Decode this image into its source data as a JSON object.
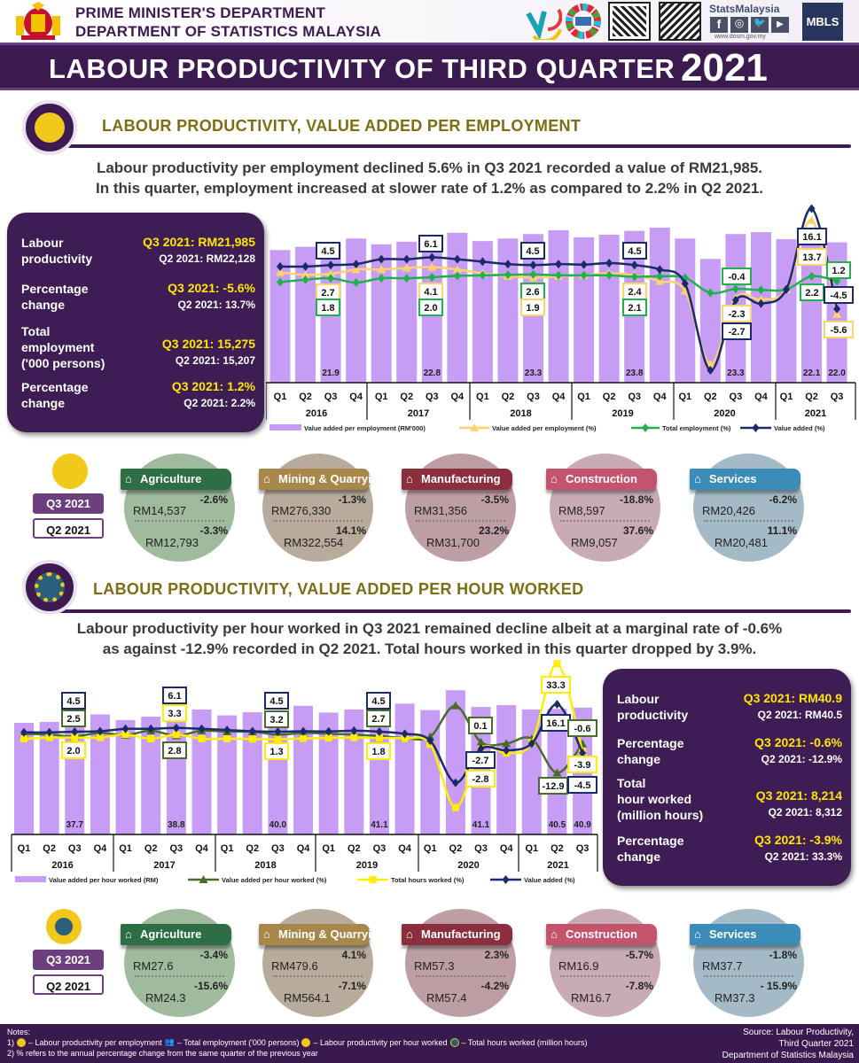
{
  "header": {
    "org_line1": "PRIME MINISTER'S DEPARTMENT",
    "org_line2": "DEPARTMENT OF STATISTICS MALAYSIA",
    "stats_brand": "StatsMalaysia",
    "website": "www.dosm.gov.my",
    "mbls": "MBLS",
    "title": "LABOUR PRODUCTIVITY OF THIRD QUARTER",
    "title_year": "2021",
    "icons": [
      "crest-icon",
      "jata-logo",
      "sdg-wheel-logo",
      "qr-code",
      "qr-code-facebook",
      "facebook-icon",
      "instagram-icon",
      "twitter-icon",
      "youtube-icon"
    ]
  },
  "section1": {
    "heading": "LABOUR PRODUCTIVITY, VALUE ADDED PER EMPLOYMENT",
    "summary_line1": "Labour productivity per employment declined 5.6% in Q3 2021 recorded a value of RM21,985.",
    "summary_line2": "In this quarter, employment increased at slower rate of 1.2% as compared to 2.2% in Q2 2021.",
    "info": [
      {
        "label": "Labour\nproductivity",
        "q3": "Q3 2021: RM21,985",
        "q2": "Q2 2021: RM22,128"
      },
      {
        "label": "Percentage\nchange",
        "q3": "Q3 2021: -5.6%",
        "q2": "Q2 2021: 13.7%"
      },
      {
        "label": "Total\nemployment\n('000 persons)",
        "q3": "Q3 2021: 15,275",
        "q2": "Q2 2021: 15,207"
      },
      {
        "label": "Percentage\nchange",
        "q3": "Q3 2021: 1.2%",
        "q2": "Q2 2021: 2.2%"
      }
    ],
    "q3_label": "Q3 2021",
    "q2_label": "Q2 2021",
    "sectors": [
      {
        "name": "Agriculture",
        "icon": "palm-tree-icon",
        "color": "#2e6e45",
        "bg": "#8fae8c",
        "q3_value": "RM14,537",
        "q3_change": "-2.6%",
        "q2_value": "RM12,793",
        "q2_change": "-3.3%"
      },
      {
        "name": "Mining & Quarrying",
        "icon": "mining-icon",
        "color": "#a8874a",
        "bg": "#ab9c8a",
        "q3_value": "RM276,330",
        "q3_change": "-1.3%",
        "q2_value": "RM322,554",
        "q2_change": "14.1%"
      },
      {
        "name": "Manufacturing",
        "icon": "factory-icon",
        "color": "#8b2e3e",
        "bg": "#b28d94",
        "q3_value": "RM31,356",
        "q3_change": "-3.5%",
        "q2_value": "RM31,700",
        "q2_change": "23.2%"
      },
      {
        "name": "Construction",
        "icon": "crane-icon",
        "color": "#c4536e",
        "bg": "#bf9ca7",
        "q3_value": "RM8,597",
        "q3_change": "-18.8%",
        "q2_value": "RM9,057",
        "q2_change": "37.6%"
      },
      {
        "name": "Services",
        "icon": "services-icon",
        "color": "#3b8cb8",
        "bg": "#94afbd",
        "q3_value": "RM20,426",
        "q3_change": "-6.2%",
        "q2_value": "RM20,481",
        "q2_change": "11.1%"
      }
    ]
  },
  "section2": {
    "heading": "LABOUR PRODUCTIVITY, VALUE ADDED PER HOUR WORKED",
    "summary_line1": "Labour productivity per hour worked in Q3 2021 remained decline albeit at a marginal rate of -0.6%",
    "summary_line2": "as against -12.9% recorded in Q2 2021. Total hours worked in this quarter dropped by 3.9%.",
    "info": [
      {
        "label": "Labour\nproductivity",
        "q3": "Q3 2021: RM40.9",
        "q2": "Q2 2021: RM40.5"
      },
      {
        "label": "Percentage\nchange",
        "q3": "Q3 2021: -0.6%",
        "q2": "Q2 2021: -12.9%"
      },
      {
        "label": "Total\nhour worked\n(million hours)",
        "q3": "Q3 2021: 8,214",
        "q2": "Q2 2021: 8,312"
      },
      {
        "label": "Percentage\nchange",
        "q3": "Q3 2021: -3.9%",
        "q2": "Q2 2021: 33.3%"
      }
    ],
    "q3_label": "Q3 2021",
    "q2_label": "Q2 2021",
    "sectors": [
      {
        "name": "Agriculture",
        "icon": "palm-tree-icon",
        "color": "#2e6e45",
        "bg": "#8fae8c",
        "q3_value": "RM27.6",
        "q3_change": "-3.4%",
        "q2_value": "RM24.3",
        "q2_change": "-15.6%"
      },
      {
        "name": "Mining & Quarrying",
        "icon": "mining-icon",
        "color": "#a8874a",
        "bg": "#ab9c8a",
        "q3_value": "RM479.6",
        "q3_change": "4.1%",
        "q2_value": "RM564.1",
        "q2_change": "-7.1%"
      },
      {
        "name": "Manufacturing",
        "icon": "factory-icon",
        "color": "#8b2e3e",
        "bg": "#b28d94",
        "q3_value": "RM57.3",
        "q3_change": "2.3%",
        "q2_value": "RM57.4",
        "q2_change": "-4.2%"
      },
      {
        "name": "Construction",
        "icon": "crane-icon",
        "color": "#c4536e",
        "bg": "#bf9ca7",
        "q3_value": "RM16.9",
        "q3_change": "-5.7%",
        "q2_value": "RM16.7",
        "q2_change": "-7.8%"
      },
      {
        "name": "Services",
        "icon": "services-icon",
        "color": "#3b8cb8",
        "bg": "#94afbd",
        "q3_value": "RM37.7",
        "q3_change": "-1.8%",
        "q2_value": "RM37.3",
        "q2_change": "- 15.9%"
      }
    ]
  },
  "chart_data": [
    {
      "type": "bar+line",
      "quarters": [
        "Q1",
        "Q2",
        "Q3",
        "Q4",
        "Q1",
        "Q2",
        "Q3",
        "Q4",
        "Q1",
        "Q2",
        "Q3",
        "Q4",
        "Q1",
        "Q2",
        "Q3",
        "Q4",
        "Q1",
        "Q2",
        "Q3",
        "Q4",
        "Q1",
        "Q2",
        "Q3"
      ],
      "years": [
        "2016",
        "2017",
        "2018",
        "2019",
        "2020",
        "2021"
      ],
      "bar_series": {
        "name": "Value added per employment (RM'000)",
        "color": "#c79cf4",
        "values": [
          20.8,
          21.3,
          21.9,
          22.6,
          21.7,
          22.1,
          22.8,
          23.5,
          22.2,
          22.6,
          23.3,
          23.9,
          22.8,
          23.2,
          23.8,
          24.3,
          22.6,
          19.4,
          23.3,
          23.6,
          22.5,
          22.1,
          22.0
        ]
      },
      "bar_labels": [
        {
          "index": 2,
          "text": "21.9"
        },
        {
          "index": 6,
          "text": "22.8"
        },
        {
          "index": 10,
          "text": "23.3"
        },
        {
          "index": 14,
          "text": "23.8"
        },
        {
          "index": 18,
          "text": "23.3"
        },
        {
          "index": 21,
          "text": "22.1"
        },
        {
          "index": 22,
          "text": "22.0"
        }
      ],
      "series": [
        {
          "name": "Value added per employment (%)",
          "color": "#ffd36b",
          "marker": "triangle",
          "values": [
            3.0,
            2.5,
            2.7,
            3.6,
            3.6,
            3.9,
            4.1,
            3.6,
            2.8,
            2.2,
            1.9,
            2.2,
            2.4,
            2.8,
            2.4,
            1.2,
            -0.8,
            -15.9,
            -2.3,
            -2.6,
            -0.5,
            13.7,
            -5.6
          ]
        },
        {
          "name": "Total employment (%)",
          "color": "#20b050",
          "marker": "diamond",
          "values": [
            1.0,
            1.5,
            1.8,
            0.9,
            1.8,
            1.8,
            2.0,
            2.3,
            2.4,
            2.5,
            2.6,
            2.4,
            2.4,
            2.4,
            2.1,
            2.2,
            1.9,
            -1.2,
            -0.4,
            -0.6,
            -0.5,
            2.2,
            1.2
          ]
        },
        {
          "name": "Value added  (%)",
          "color": "#1b2a6b",
          "marker": "diamond",
          "values": [
            4.2,
            4.2,
            4.5,
            4.7,
            5.7,
            5.7,
            6.1,
            5.7,
            5.2,
            4.7,
            4.5,
            4.7,
            4.6,
            4.9,
            4.5,
            3.6,
            0.7,
            -17.1,
            -2.7,
            -3.4,
            -0.5,
            16.1,
            -4.5
          ]
        }
      ],
      "data_labels": [
        {
          "series": 2,
          "index": 2,
          "text": "4.5"
        },
        {
          "series": 0,
          "index": 2,
          "text": "2.7"
        },
        {
          "series": 1,
          "index": 2,
          "text": "1.8"
        },
        {
          "series": 2,
          "index": 6,
          "text": "6.1"
        },
        {
          "series": 0,
          "index": 6,
          "text": "4.1"
        },
        {
          "series": 1,
          "index": 6,
          "text": "2.0"
        },
        {
          "series": 2,
          "index": 10,
          "text": "4.5"
        },
        {
          "series": 1,
          "index": 10,
          "text": "2.6"
        },
        {
          "series": 0,
          "index": 10,
          "text": "1.9"
        },
        {
          "series": 2,
          "index": 14,
          "text": "4.5"
        },
        {
          "series": 0,
          "index": 14,
          "text": "2.4"
        },
        {
          "series": 1,
          "index": 14,
          "text": "2.1"
        },
        {
          "series": 1,
          "index": 18,
          "text": "-0.4"
        },
        {
          "series": 0,
          "index": 18,
          "text": "-2.3"
        },
        {
          "series": 2,
          "index": 18,
          "text": "-2.7"
        },
        {
          "series": 2,
          "index": 21,
          "text": "16.1"
        },
        {
          "series": 0,
          "index": 21,
          "text": "13.7"
        },
        {
          "series": 1,
          "index": 21,
          "text": "2.2"
        },
        {
          "series": 1,
          "index": 22,
          "text": "1.2"
        },
        {
          "series": 2,
          "index": 22,
          "text": "-4.5"
        },
        {
          "series": 0,
          "index": 22,
          "text": "-5.6"
        }
      ]
    },
    {
      "type": "bar+line",
      "quarters": [
        "Q1",
        "Q2",
        "Q3",
        "Q4",
        "Q1",
        "Q2",
        "Q3",
        "Q4",
        "Q1",
        "Q2",
        "Q3",
        "Q4",
        "Q1",
        "Q2",
        "Q3",
        "Q4",
        "Q1",
        "Q2",
        "Q3",
        "Q4",
        "Q1",
        "Q2",
        "Q3"
      ],
      "years": [
        "2016",
        "2017",
        "2018",
        "2019",
        "2020",
        "2021"
      ],
      "bar_series": {
        "name": "Value added per hour worked (RM)",
        "color": "#c79cf4",
        "values": [
          36.0,
          36.3,
          37.7,
          38.7,
          36.9,
          38.0,
          38.8,
          40.3,
          38.4,
          39.4,
          40.0,
          41.5,
          39.3,
          40.3,
          41.1,
          42.2,
          40.1,
          46.5,
          41.1,
          41.7,
          40.3,
          40.5,
          40.9
        ]
      },
      "bar_labels": [
        {
          "index": 2,
          "text": "37.7"
        },
        {
          "index": 6,
          "text": "38.8"
        },
        {
          "index": 10,
          "text": "40.0"
        },
        {
          "index": 14,
          "text": "41.1"
        },
        {
          "index": 18,
          "text": "41.1"
        },
        {
          "index": 21,
          "text": "40.5"
        },
        {
          "index": 22,
          "text": "40.9"
        }
      ],
      "series": [
        {
          "name": "Value added per hour worked (%)",
          "color": "#4a6b2a",
          "marker": "triangle",
          "values": [
            3.6,
            3.3,
            2.5,
            4.0,
            3.0,
            4.9,
            2.8,
            4.9,
            4.5,
            4.5,
            3.2,
            4.0,
            3.6,
            3.3,
            2.7,
            1.8,
            2.4,
            15.5,
            0.1,
            -0.5,
            1.5,
            -12.9,
            -0.6
          ]
        },
        {
          "name": "Total hours worked (%)",
          "color": "#ffee00",
          "marker": "square",
          "values": [
            1.5,
            2.0,
            2.0,
            2.0,
            3.3,
            1.5,
            3.3,
            1.5,
            1.5,
            1.4,
            1.3,
            1.6,
            1.9,
            2.0,
            1.8,
            1.6,
            -0.8,
            -27.6,
            -2.8,
            -4.5,
            -0.1,
            33.3,
            -3.9
          ]
        },
        {
          "name": "Value added  (%)",
          "color": "#1b2a6b",
          "marker": "diamond",
          "values": [
            4.2,
            4.2,
            4.5,
            4.7,
            5.7,
            5.7,
            6.1,
            5.7,
            5.2,
            4.7,
            4.5,
            4.7,
            4.6,
            4.9,
            4.5,
            3.6,
            0.7,
            -17.1,
            -2.7,
            -3.4,
            -0.5,
            16.1,
            -4.5
          ]
        }
      ],
      "data_labels": [
        {
          "series": 2,
          "index": 2,
          "text": "4.5"
        },
        {
          "series": 0,
          "index": 2,
          "text": "2.5"
        },
        {
          "series": 1,
          "index": 2,
          "text": "2.0"
        },
        {
          "series": 2,
          "index": 6,
          "text": "6.1"
        },
        {
          "series": 1,
          "index": 6,
          "text": "3.3"
        },
        {
          "series": 0,
          "index": 6,
          "text": "2.8"
        },
        {
          "series": 2,
          "index": 10,
          "text": "4.5"
        },
        {
          "series": 0,
          "index": 10,
          "text": "3.2"
        },
        {
          "series": 1,
          "index": 10,
          "text": "1.3"
        },
        {
          "series": 2,
          "index": 14,
          "text": "4.5"
        },
        {
          "series": 0,
          "index": 14,
          "text": "2.7"
        },
        {
          "series": 1,
          "index": 14,
          "text": "1.8"
        },
        {
          "series": 0,
          "index": 18,
          "text": "0.1"
        },
        {
          "series": 2,
          "index": 18,
          "text": "-2.7"
        },
        {
          "series": 1,
          "index": 18,
          "text": "-2.8"
        },
        {
          "series": 1,
          "index": 21,
          "text": "33.3"
        },
        {
          "series": 2,
          "index": 21,
          "text": "16.1"
        },
        {
          "series": 0,
          "index": 21,
          "text": "-12.9"
        },
        {
          "series": 0,
          "index": 22,
          "text": "-0.6"
        },
        {
          "series": 1,
          "index": 22,
          "text": "-3.9"
        },
        {
          "series": 2,
          "index": 22,
          "text": "-4.5"
        }
      ]
    }
  ],
  "footer": {
    "notes_title": "Notes:",
    "note1_prefix": "1)",
    "note1_a": "– Labour productivity per employment",
    "note1_b": "– Total employment ('000 persons)",
    "note1_c": "– Labour productivity per hour worked",
    "note1_d": "– Total hours worked (million hours)",
    "note2": "2) % refers to the annual percentage change from the same quarter of the previous year",
    "source_line1": "Source: Labour Productivity,",
    "source_line2": "Third Quarter 2021",
    "source_line3": "Department of Statistics Malaysia"
  }
}
